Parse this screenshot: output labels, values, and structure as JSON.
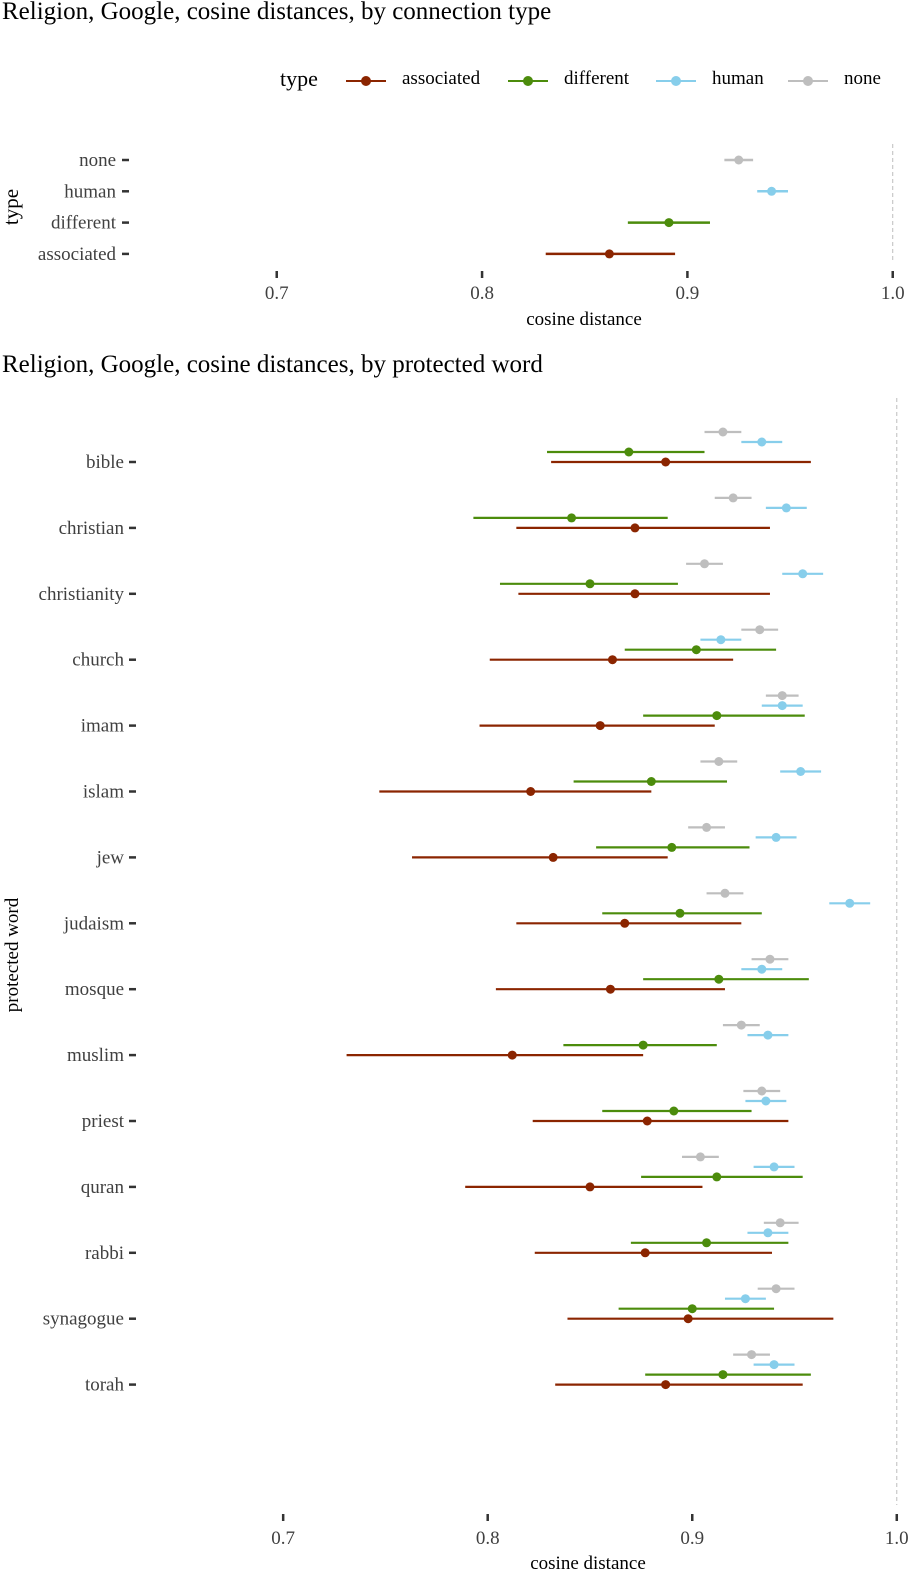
{
  "chart_data": [
    {
      "type": "errorbar",
      "title": "Religion, Google,  cosine distances, by connection type",
      "xlabel": "cosine distance",
      "ylabel": "type",
      "xlim": [
        0.63,
        1.005
      ],
      "xticks": [
        0.7,
        0.8,
        0.9,
        1.0
      ],
      "xtick_labels": [
        "0.7",
        "0.8",
        "0.9",
        "1.0"
      ],
      "reference_line": 1.0,
      "categories": [
        "none",
        "human",
        "different",
        "associated"
      ],
      "series": [
        {
          "name": "associated",
          "color": "#8B2500",
          "points": [
            {
              "category": "associated",
              "mean": 0.862,
              "low": 0.831,
              "high": 0.894
            }
          ]
        },
        {
          "name": "different",
          "color": "#4C8C0C",
          "points": [
            {
              "category": "different",
              "mean": 0.891,
              "low": 0.871,
              "high": 0.911
            }
          ]
        },
        {
          "name": "human",
          "color": "#87CEEB",
          "points": [
            {
              "category": "human",
              "mean": 0.941,
              "low": 0.934,
              "high": 0.949
            }
          ]
        },
        {
          "name": "none",
          "color": "#BEBEBE",
          "points": [
            {
              "category": "none",
              "mean": 0.925,
              "low": 0.918,
              "high": 0.932
            }
          ]
        }
      ]
    },
    {
      "type": "errorbar",
      "title": "Religion, Google, cosine distances, by protected word",
      "xlabel": "cosine distance",
      "ylabel": "protected word",
      "xlim": [
        0.63,
        1.005
      ],
      "xticks": [
        0.7,
        0.8,
        0.9,
        1.0
      ],
      "xtick_labels": [
        "0.7",
        "0.8",
        "0.9",
        "1.0"
      ],
      "reference_line": 1.0,
      "categories": [
        "bible",
        "christian",
        "christianity",
        "church",
        "imam",
        "islam",
        "jew",
        "judaism",
        "mosque",
        "muslim",
        "priest",
        "quran",
        "rabbi",
        "synagogue",
        "torah"
      ],
      "series": [
        {
          "name": "none",
          "color": "#BEBEBE",
          "values": [
            {
              "mean": 0.915,
              "low": 0.906,
              "high": 0.924
            },
            {
              "mean": 0.92,
              "low": 0.911,
              "high": 0.929
            },
            {
              "mean": 0.906,
              "low": 0.897,
              "high": 0.915
            },
            {
              "mean": 0.933,
              "low": 0.924,
              "high": 0.942
            },
            {
              "mean": 0.944,
              "low": 0.936,
              "high": 0.952
            },
            {
              "mean": 0.913,
              "low": 0.904,
              "high": 0.922
            },
            {
              "mean": 0.907,
              "low": 0.898,
              "high": 0.916
            },
            {
              "mean": 0.916,
              "low": 0.907,
              "high": 0.925
            },
            {
              "mean": 0.938,
              "low": 0.929,
              "high": 0.947
            },
            {
              "mean": 0.924,
              "low": 0.915,
              "high": 0.933
            },
            {
              "mean": 0.934,
              "low": 0.925,
              "high": 0.943
            },
            {
              "mean": 0.904,
              "low": 0.895,
              "high": 0.913
            },
            {
              "mean": 0.943,
              "low": 0.935,
              "high": 0.952
            },
            {
              "mean": 0.941,
              "low": 0.932,
              "high": 0.95
            },
            {
              "mean": 0.929,
              "low": 0.92,
              "high": 0.938
            }
          ]
        },
        {
          "name": "human",
          "color": "#87CEEB",
          "values": [
            {
              "mean": 0.934,
              "low": 0.924,
              "high": 0.944
            },
            {
              "mean": 0.946,
              "low": 0.936,
              "high": 0.956
            },
            {
              "mean": 0.954,
              "low": 0.944,
              "high": 0.964
            },
            {
              "mean": 0.914,
              "low": 0.904,
              "high": 0.924
            },
            {
              "mean": 0.944,
              "low": 0.934,
              "high": 0.954
            },
            {
              "mean": 0.953,
              "low": 0.943,
              "high": 0.963
            },
            {
              "mean": 0.941,
              "low": 0.931,
              "high": 0.951
            },
            {
              "mean": 0.977,
              "low": 0.967,
              "high": 0.987
            },
            {
              "mean": 0.934,
              "low": 0.924,
              "high": 0.944
            },
            {
              "mean": 0.937,
              "low": 0.927,
              "high": 0.947
            },
            {
              "mean": 0.936,
              "low": 0.926,
              "high": 0.946
            },
            {
              "mean": 0.94,
              "low": 0.93,
              "high": 0.95
            },
            {
              "mean": 0.937,
              "low": 0.927,
              "high": 0.947
            },
            {
              "mean": 0.926,
              "low": 0.916,
              "high": 0.936
            },
            {
              "mean": 0.94,
              "low": 0.93,
              "high": 0.95
            }
          ]
        },
        {
          "name": "different",
          "color": "#4C8C0C",
          "values": [
            {
              "mean": 0.869,
              "low": 0.829,
              "high": 0.906
            },
            {
              "mean": 0.841,
              "low": 0.793,
              "high": 0.888
            },
            {
              "mean": 0.85,
              "low": 0.806,
              "high": 0.893
            },
            {
              "mean": 0.902,
              "low": 0.867,
              "high": 0.941
            },
            {
              "mean": 0.912,
              "low": 0.876,
              "high": 0.955
            },
            {
              "mean": 0.88,
              "low": 0.842,
              "high": 0.917
            },
            {
              "mean": 0.89,
              "low": 0.853,
              "high": 0.928
            },
            {
              "mean": 0.894,
              "low": 0.856,
              "high": 0.934
            },
            {
              "mean": 0.913,
              "low": 0.876,
              "high": 0.957
            },
            {
              "mean": 0.876,
              "low": 0.837,
              "high": 0.912
            },
            {
              "mean": 0.891,
              "low": 0.856,
              "high": 0.929
            },
            {
              "mean": 0.912,
              "low": 0.875,
              "high": 0.954
            },
            {
              "mean": 0.907,
              "low": 0.87,
              "high": 0.947
            },
            {
              "mean": 0.9,
              "low": 0.864,
              "high": 0.94
            },
            {
              "mean": 0.915,
              "low": 0.877,
              "high": 0.958
            }
          ]
        },
        {
          "name": "associated",
          "color": "#8B2500",
          "values": [
            {
              "mean": 0.887,
              "low": 0.831,
              "high": 0.958
            },
            {
              "mean": 0.872,
              "low": 0.814,
              "high": 0.938
            },
            {
              "mean": 0.872,
              "low": 0.815,
              "high": 0.938
            },
            {
              "mean": 0.861,
              "low": 0.801,
              "high": 0.92
            },
            {
              "mean": 0.855,
              "low": 0.796,
              "high": 0.911
            },
            {
              "mean": 0.821,
              "low": 0.747,
              "high": 0.88
            },
            {
              "mean": 0.832,
              "low": 0.763,
              "high": 0.888
            },
            {
              "mean": 0.867,
              "low": 0.814,
              "high": 0.924
            },
            {
              "mean": 0.86,
              "low": 0.804,
              "high": 0.916
            },
            {
              "mean": 0.812,
              "low": 0.731,
              "high": 0.876
            },
            {
              "mean": 0.878,
              "low": 0.822,
              "high": 0.947
            },
            {
              "mean": 0.85,
              "low": 0.789,
              "high": 0.905
            },
            {
              "mean": 0.877,
              "low": 0.823,
              "high": 0.939
            },
            {
              "mean": 0.898,
              "low": 0.839,
              "high": 0.969
            },
            {
              "mean": 0.887,
              "low": 0.833,
              "high": 0.954
            }
          ]
        }
      ]
    }
  ],
  "legend": {
    "title": "type",
    "items": [
      {
        "label": "associated",
        "color": "#8B2500"
      },
      {
        "label": "different",
        "color": "#4C8C0C"
      },
      {
        "label": "human",
        "color": "#87CEEB"
      },
      {
        "label": "none",
        "color": "#BEBEBE"
      }
    ]
  }
}
